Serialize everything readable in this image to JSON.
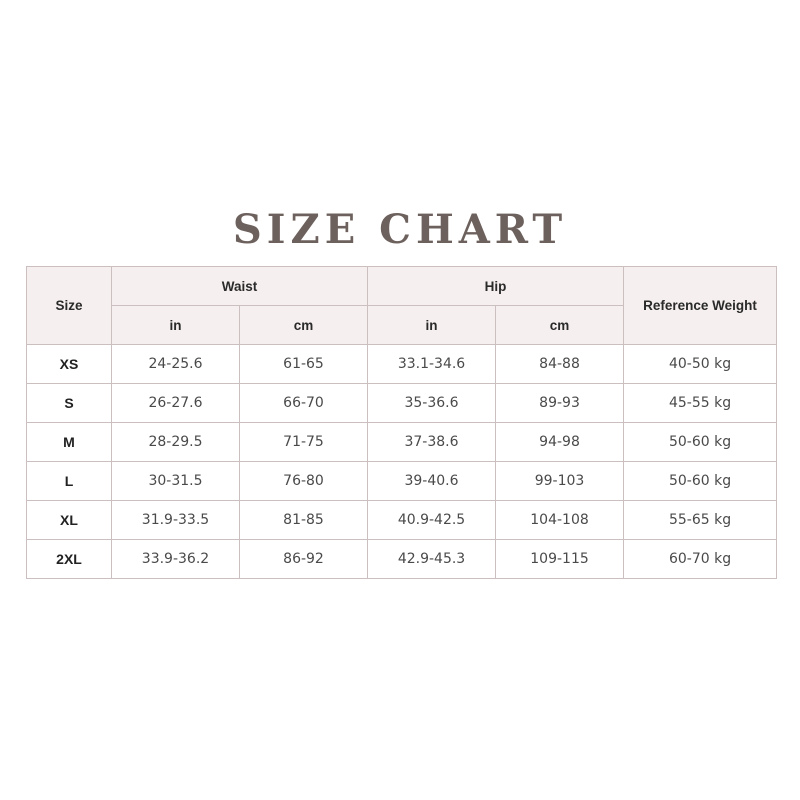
{
  "title": "SIZE CHART",
  "headers": {
    "size": "Size",
    "waist": "Waist",
    "hip": "Hip",
    "weight": "Reference Weight",
    "waist_in": "in",
    "waist_cm": "cm",
    "hip_in": "in",
    "hip_cm": "cm"
  },
  "rows": [
    {
      "size": "XS",
      "waist_in": "24-25.6",
      "waist_cm": "61-65",
      "hip_in": "33.1-34.6",
      "hip_cm": "84-88",
      "weight": "40-50 kg"
    },
    {
      "size": "S",
      "waist_in": "26-27.6",
      "waist_cm": "66-70",
      "hip_in": "35-36.6",
      "hip_cm": "89-93",
      "weight": "45-55 kg"
    },
    {
      "size": "M",
      "waist_in": "28-29.5",
      "waist_cm": "71-75",
      "hip_in": "37-38.6",
      "hip_cm": "94-98",
      "weight": "50-60 kg"
    },
    {
      "size": "L",
      "waist_in": "30-31.5",
      "waist_cm": "76-80",
      "hip_in": "39-40.6",
      "hip_cm": "99-103",
      "weight": "50-60 kg"
    },
    {
      "size": "XL",
      "waist_in": "31.9-33.5",
      "waist_cm": "81-85",
      "hip_in": "40.9-42.5",
      "hip_cm": "104-108",
      "weight": "55-65 kg"
    },
    {
      "size": "2XL",
      "waist_in": "33.9-36.2",
      "waist_cm": "86-92",
      "hip_in": "42.9-45.3",
      "hip_cm": "109-115",
      "weight": "60-70 kg"
    }
  ]
}
